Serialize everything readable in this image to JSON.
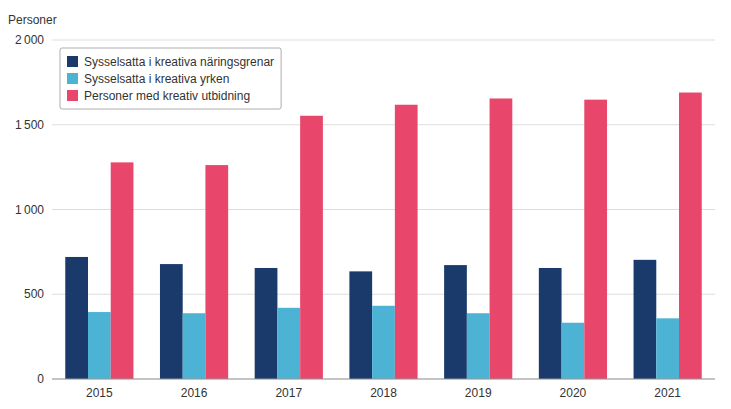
{
  "chart_data": {
    "type": "bar",
    "ylabel": "Personer",
    "categories": [
      "2015",
      "2016",
      "2017",
      "2018",
      "2019",
      "2020",
      "2021"
    ],
    "series": [
      {
        "name": "Sysselsatta i kreativa näringsgrenar",
        "color": "#1a3a6b",
        "values": [
          720,
          678,
          655,
          635,
          672,
          655,
          703
        ]
      },
      {
        "name": "Sysselsatta i kreativa yrken",
        "color": "#4db3d4",
        "values": [
          395,
          388,
          420,
          432,
          388,
          332,
          358
        ]
      },
      {
        "name": "Personer med kreativ utbidning",
        "color": "#e8466b",
        "values": [
          1278,
          1262,
          1553,
          1618,
          1655,
          1648,
          1690
        ]
      }
    ],
    "ylim": [
      0,
      2000
    ],
    "yticks": [
      0,
      500,
      {
        "value": 1000,
        "label": "1 000"
      },
      {
        "value": 1500,
        "label": "1 500"
      },
      {
        "value": 2000,
        "label": "2 000"
      }
    ],
    "grid": true,
    "legend": "upper left"
  }
}
